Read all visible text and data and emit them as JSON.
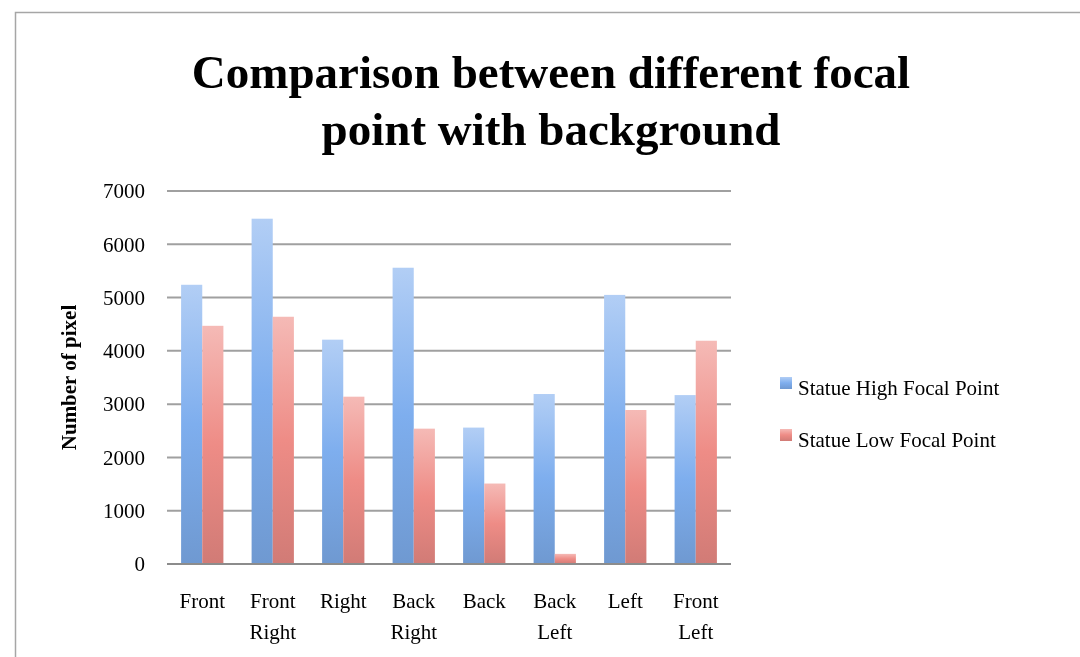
{
  "chart_data": {
    "type": "bar",
    "title": "Comparison between different focal point with background",
    "ylabel": "Number of pixel",
    "categories": [
      "Front",
      "Front Right",
      "Right",
      "Back Right",
      "Back",
      "Back Left",
      "Left",
      "Front Left"
    ],
    "series": [
      {
        "name": "Statue High Focal Point",
        "color": "#7eaeee",
        "values": [
          5240,
          6480,
          4210,
          5560,
          2560,
          3190,
          5050,
          3170
        ]
      },
      {
        "name": "Statue Low Focal Point",
        "color": "#ee8c86",
        "values": [
          4470,
          4640,
          3140,
          2540,
          1510,
          190,
          2890,
          4190
        ]
      }
    ],
    "ylim": [
      0,
      7000
    ],
    "yticks": [
      0,
      1000,
      2000,
      3000,
      4000,
      5000,
      6000,
      7000
    ],
    "grid": "y",
    "legend": "right"
  }
}
